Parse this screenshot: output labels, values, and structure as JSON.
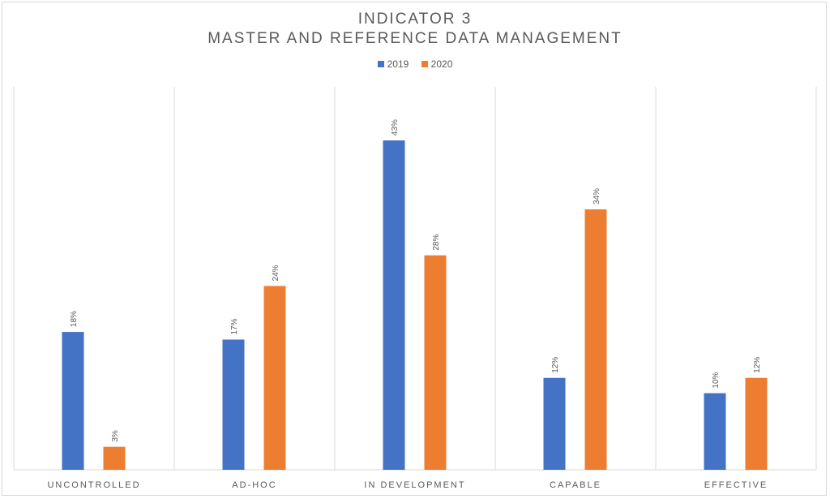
{
  "chart_data": {
    "type": "bar",
    "title": [
      "INDICATOR 3",
      "MASTER AND REFERENCE DATA MANAGEMENT"
    ],
    "categories": [
      "UNCONTROLLED",
      "AD-HOC",
      "IN DEVELOPMENT",
      "CAPABLE",
      "EFFECTIVE"
    ],
    "series": [
      {
        "name": "2019",
        "color": "#4472c4",
        "values": [
          18,
          17,
          43,
          12,
          10
        ],
        "labels": [
          "18%",
          "17%",
          "43%",
          "12%",
          "10%"
        ]
      },
      {
        "name": "2020",
        "color": "#ed7d31",
        "values": [
          3,
          24,
          28,
          34,
          12
        ],
        "labels": [
          "3%",
          "24%",
          "28%",
          "34%",
          "12%"
        ]
      }
    ],
    "xlabel": "",
    "ylabel": "",
    "ylim": [
      0,
      50
    ],
    "grid": "vertical category separators",
    "legend": "top-center"
  }
}
